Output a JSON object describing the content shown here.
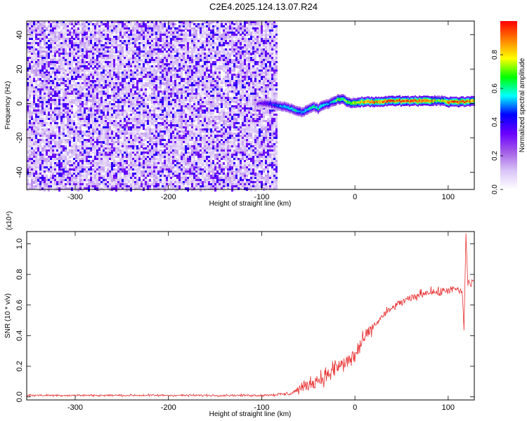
{
  "page_title": "C2E4.2025.124.13.07.R24",
  "chart_data": [
    {
      "type": "heatmap",
      "title": "C2E4.2025.124.13.07.R24",
      "xlabel": "Height of straight line (km)",
      "ylabel": "Frequency (Hz)",
      "xlim": [
        -352,
        128
      ],
      "ylim": [
        -50,
        48
      ],
      "xticks": [
        -300,
        -200,
        -100,
        0,
        100
      ],
      "yticks": [
        -40,
        -20,
        0,
        20,
        40
      ],
      "colorbar": {
        "label": "Normalized spectral amplitude",
        "range": [
          0,
          1
        ],
        "ticks": [
          0.0,
          0.2,
          0.4,
          0.6,
          0.8
        ],
        "colormap": [
          "#ffffff",
          "#d9c4f7",
          "#a35ee6",
          "#6a00ff",
          "#0000ff",
          "#00ffff",
          "#00ff00",
          "#ffff00",
          "#ff8000",
          "#ff0000"
        ]
      },
      "noise_region": {
        "x_range": [
          -352,
          -85
        ],
        "freq_range": [
          -50,
          48
        ],
        "amplitude": 0.1
      },
      "signal_track": {
        "x": [
          -105,
          -95,
          -85,
          -75,
          -65,
          -58,
          -50,
          -45,
          -40,
          -35,
          -30,
          -25,
          -20,
          -15,
          -10,
          -5,
          0,
          10,
          20,
          40,
          60,
          80,
          90,
          100,
          110,
          128
        ],
        "freq": [
          0,
          0,
          -1,
          -2,
          -4,
          -5,
          -3,
          -2,
          -3,
          -1,
          0,
          1,
          2,
          3,
          1,
          0,
          0.5,
          1,
          1,
          1.5,
          1.5,
          1.5,
          2,
          1,
          1,
          1.5
        ],
        "amplitude": [
          0.3,
          0.4,
          0.5,
          0.55,
          0.6,
          0.55,
          0.6,
          0.6,
          0.65,
          0.6,
          0.55,
          0.6,
          0.7,
          0.7,
          0.75,
          0.75,
          0.8,
          0.9,
          0.95,
          0.95,
          0.95,
          0.95,
          0.7,
          0.95,
          0.95,
          0.9
        ]
      }
    },
    {
      "type": "line",
      "xlabel": "Height of straight line (km)",
      "ylabel": "SNR (10 * v/v)",
      "y_multiplier": "(x10⁴)",
      "xlim": [
        -352,
        128
      ],
      "ylim": [
        -0.02,
        1.08
      ],
      "xticks": [
        -300,
        -200,
        -100,
        0,
        100
      ],
      "yticks": [
        0.0,
        0.2,
        0.4,
        0.6,
        0.8,
        1.0
      ],
      "grid": false,
      "series": [
        {
          "color": "#e83030",
          "x": [
            -352,
            -300,
            -250,
            -200,
            -150,
            -100,
            -70,
            -60,
            -50,
            -40,
            -30,
            -20,
            -10,
            0,
            10,
            20,
            30,
            40,
            50,
            60,
            70,
            80,
            90,
            100,
            110,
            115,
            117,
            119,
            121,
            125,
            128
          ],
          "y": [
            0.01,
            0.01,
            0.01,
            0.01,
            0.01,
            0.01,
            0.02,
            0.05,
            0.08,
            0.11,
            0.14,
            0.19,
            0.22,
            0.27,
            0.38,
            0.46,
            0.53,
            0.58,
            0.62,
            0.64,
            0.67,
            0.69,
            0.68,
            0.7,
            0.7,
            0.68,
            0.45,
            1.05,
            0.75,
            0.74,
            0.76
          ],
          "noise": [
            0.006,
            0.006,
            0.006,
            0.006,
            0.006,
            0.006,
            0.012,
            0.025,
            0.035,
            0.045,
            0.05,
            0.06,
            0.06,
            0.06,
            0.04,
            0.03,
            0.025,
            0.025,
            0.025,
            0.025,
            0.025,
            0.025,
            0.025,
            0.025,
            0.025,
            0.03,
            0.03,
            0.03,
            0.03,
            0.025,
            0.025
          ]
        }
      ]
    }
  ]
}
